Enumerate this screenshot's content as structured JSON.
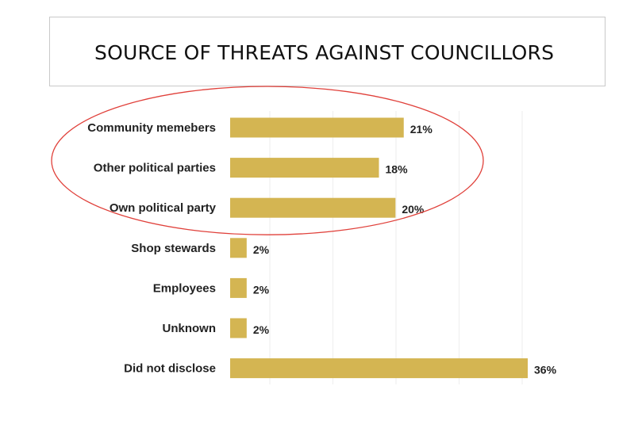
{
  "header": {
    "title": "SOURCE OF THREATS AGAINST COUNCILLORS"
  },
  "colors": {
    "bar": "#d4b552",
    "highlight_ellipse": "#e0403a",
    "grid": "#eeeeee"
  },
  "chart_data": {
    "type": "bar",
    "orientation": "horizontal",
    "title": "",
    "xlabel": "",
    "ylabel": "",
    "categories": [
      "Community memebers",
      "Other political parties",
      "Own political party",
      "Shop stewards",
      "Employees",
      "Unknown",
      "Did not disclose"
    ],
    "values": [
      21,
      18,
      20,
      2,
      2,
      2,
      36
    ],
    "value_labels": [
      "21%",
      "18%",
      "20%",
      "2%",
      "2%",
      "2%",
      "36%"
    ],
    "unit": "%",
    "xlim": [
      0,
      36
    ],
    "grid": true,
    "highlight": {
      "shape": "ellipse",
      "categories": [
        "Community memebers",
        "Other political parties",
        "Own political party"
      ]
    }
  }
}
